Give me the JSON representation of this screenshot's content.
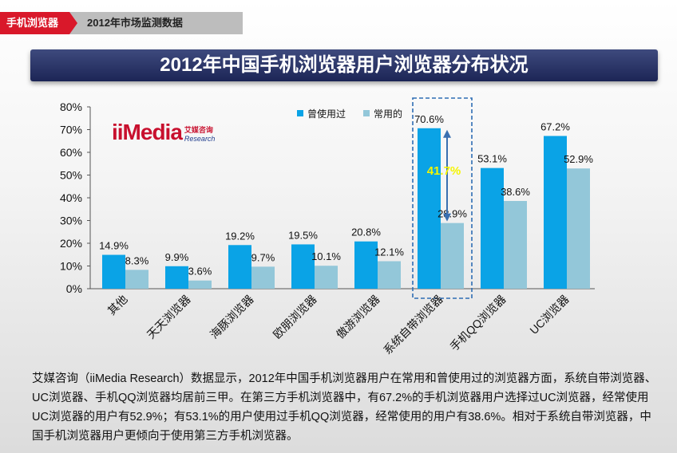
{
  "header": {
    "breadcrumb_section": "手机浏览器",
    "breadcrumb_page": "2012年市场监测数据"
  },
  "page_title": "2012年中国手机浏览器用户浏览器分布状况",
  "logo": {
    "main": "iiMedia",
    "cn": "艾媒咨询",
    "en": "Research"
  },
  "colors": {
    "series_used": "#0aa3e6",
    "series_often": "#93c7d9",
    "highlight_box": "#2e6db4",
    "highlight_text": "#f5f500"
  },
  "chart_data": {
    "type": "bar",
    "categories": [
      "其他",
      "天天浏览器",
      "海豚浏览器",
      "欧朋浏览器",
      "傲游浏览器",
      "系统自带浏览器",
      "手机QQ浏览器",
      "UC浏览器"
    ],
    "series": [
      {
        "name": "曾使用过",
        "values": [
          14.9,
          9.9,
          19.2,
          19.5,
          20.8,
          70.6,
          53.1,
          67.2
        ],
        "labels": [
          "14.9%",
          "9.9%",
          "19.2%",
          "19.5%",
          "20.8%",
          "70.6%",
          "53.1%",
          "67.2%"
        ]
      },
      {
        "name": "常用的",
        "values": [
          8.3,
          3.6,
          9.7,
          10.1,
          12.1,
          28.9,
          38.6,
          52.9
        ],
        "labels": [
          "8.3%",
          "3.6%",
          "9.7%",
          "10.1%",
          "12.1%",
          "28.9%",
          "38.6%",
          "52.9%"
        ]
      }
    ],
    "yticks": [
      "0%",
      "10%",
      "20%",
      "30%",
      "40%",
      "50%",
      "60%",
      "70%",
      "80%"
    ],
    "ylim": [
      0,
      80
    ],
    "legend_position": "top",
    "annotation": {
      "category": "系统自带浏览器",
      "text": "41.7%"
    },
    "grid": false
  },
  "description": "艾媒咨询（iiMedia Research）数据显示，2012年中国手机浏览器用户在常用和曾使用过的浏览器方面，系统自带浏览器、UC浏览器、手机QQ浏览器均居前三甲。在第三方手机浏览器中，有67.2%的手机浏览器用户选择过UC浏览器，经常使用UC浏览器的用户有52.9%；有53.1%的用户使用过手机QQ浏览器，经常使用的用户有38.6%。相对于系统自带浏览器，中国手机浏览器用户更倾向于使用第三方手机浏览器。"
}
